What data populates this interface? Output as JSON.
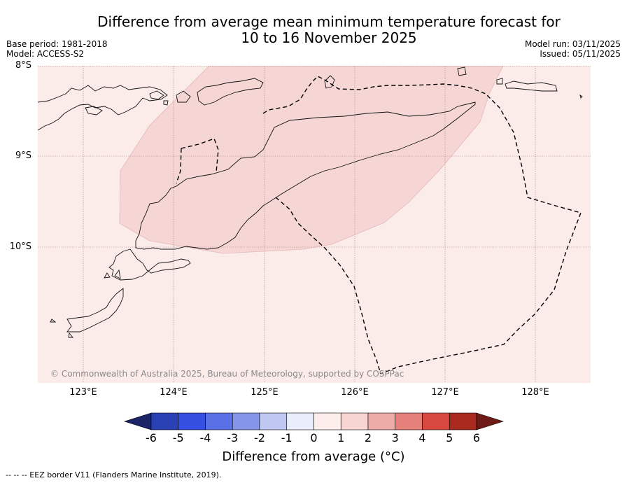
{
  "title_line1": "Difference from average mean minimum temperature forecast for",
  "title_line2": "10 to 16 November 2025",
  "base_period": "Base period: 1981-2018",
  "model": "Model: ACCESS-S2",
  "model_run": "Model run: 03/11/2025",
  "issued": "Issued: 05/11/2025",
  "lat_labels": [
    "8°S",
    "9°S",
    "10°S"
  ],
  "lon_labels": [
    "123°E",
    "124°E",
    "125°E",
    "126°E",
    "127°E",
    "128°E"
  ],
  "credit": "© Commonwealth of Australia 2025, Bureau of Meteorology, supported by COSPPac",
  "colorbar": {
    "title": "Difference from average (°C)",
    "ticks": [
      "-6",
      "-5",
      "-4",
      "-3",
      "-2",
      "-1",
      "0",
      "1",
      "2",
      "3",
      "4",
      "5",
      "6"
    ],
    "colors": [
      "#1a2466",
      "#2a41b5",
      "#3550e0",
      "#5a70e6",
      "#8595ea",
      "#c0c7f2",
      "#eaedfb",
      "#fdeeec",
      "#f6d5d3",
      "#eeaca8",
      "#e5807b",
      "#d84a40",
      "#a9291f",
      "#6e1a17"
    ]
  },
  "legend": "--  --  -- EEZ border V11 (Flanders Marine Institute, 2019).",
  "map_colors": {
    "background": "#fbebe9",
    "anomaly_1_2": "#f6d6d5",
    "grid": "#a88585"
  }
}
